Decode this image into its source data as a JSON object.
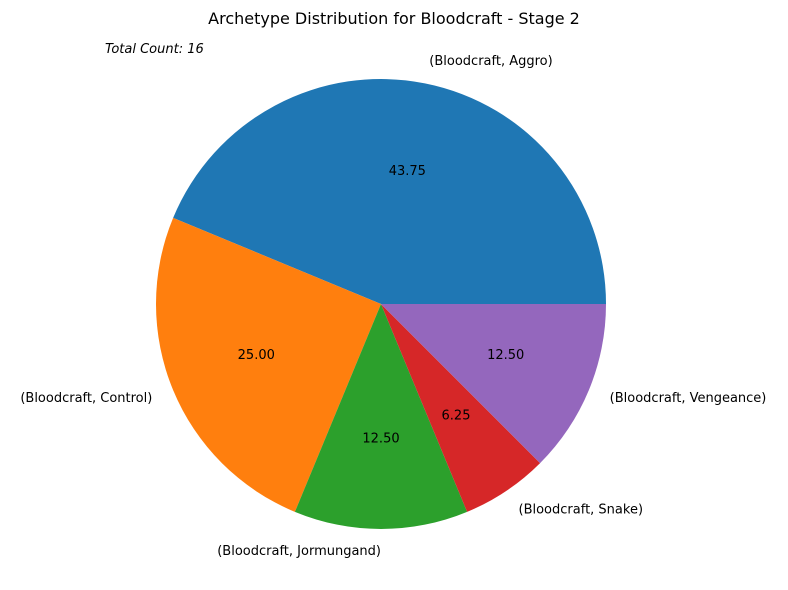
{
  "chart_data": {
    "type": "pie",
    "title": "Archetype Distribution for Bloodcraft - Stage 2",
    "annotation": "Total Count: 16",
    "categories": [
      "(Bloodcraft, Aggro)",
      "(Bloodcraft, Control)",
      "(Bloodcraft, Jormungand)",
      "(Bloodcraft, Snake)",
      "(Bloodcraft, Vengeance)"
    ],
    "values": [
      7,
      4,
      2,
      1,
      2
    ],
    "percent_labels": [
      "43.75",
      "25.00",
      "12.50",
      "6.25",
      "12.50"
    ],
    "colors": [
      "#1f77b4",
      "#ff7f0e",
      "#2ca02c",
      "#d62728",
      "#9467bd"
    ],
    "start_angle_deg": 0,
    "direction": "counterclockwise"
  }
}
